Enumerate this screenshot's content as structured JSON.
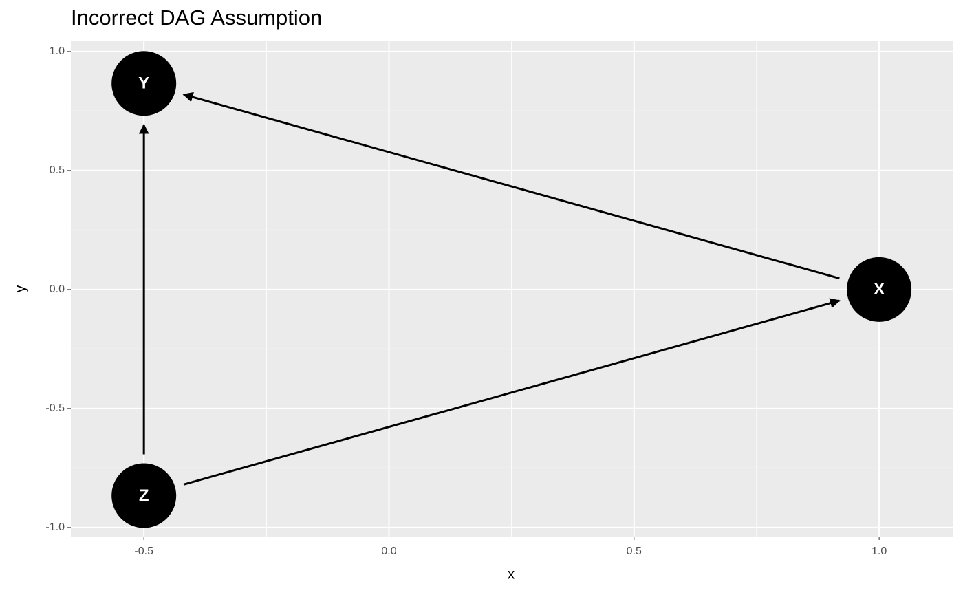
{
  "chart_data": {
    "type": "dag",
    "title": "Incorrect DAG Assumption",
    "x_label": "x",
    "y_label": "y",
    "nodes": [
      {
        "label": "Y",
        "x": -0.5,
        "y": 0.866
      },
      {
        "label": "X",
        "x": 1.0,
        "y": 0
      },
      {
        "label": "Z",
        "x": -0.5,
        "y": -0.866
      }
    ],
    "edges": [
      [
        2,
        0
      ],
      [
        2,
        1
      ],
      [
        1,
        0
      ]
    ],
    "xlim": [
      -0.649,
      1.15
    ],
    "ylim": [
      -1.038,
      1.043
    ],
    "xticks": [
      -0.5,
      {
        "value": 0,
        "label": "0.0"
      },
      0.5,
      {
        "value": 1,
        "label": "1.0"
      }
    ],
    "yticks": [
      {
        "value": -1,
        "label": "-1.0"
      },
      -0.5,
      {
        "value": 0,
        "label": "0.0"
      },
      0.5,
      {
        "value": 1,
        "label": "1.0"
      }
    ],
    "grid": true,
    "color": "#000000"
  }
}
